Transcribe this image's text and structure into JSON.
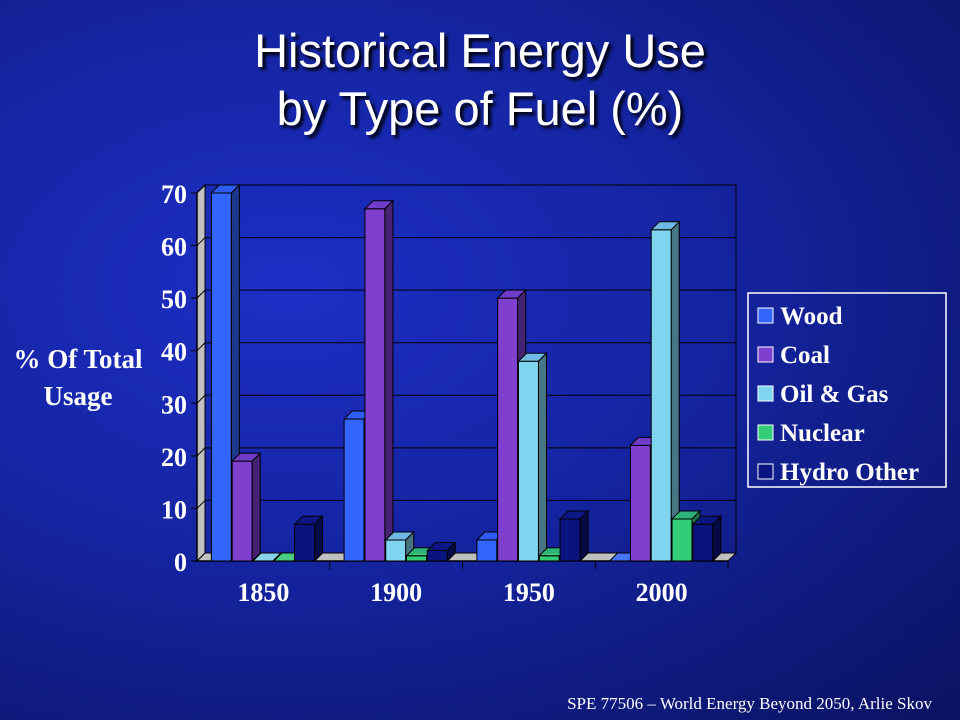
{
  "slide": {
    "title_line1": "Historical Energy Use",
    "title_line2": "by Type of Fuel (%)",
    "footer": "SPE 77506 – World Energy Beyond 2050, Arlie Skov"
  },
  "chart_data": {
    "type": "bar",
    "title": "",
    "ylabel": "% Of Total Usage",
    "ylabel_lines": [
      "% Of Total",
      "Usage"
    ],
    "xlabel": "",
    "categories": [
      "1850",
      "1900",
      "1950",
      "2000"
    ],
    "ylim": [
      0,
      70
    ],
    "yticks": [
      0,
      10,
      20,
      30,
      40,
      50,
      60,
      70
    ],
    "grid": true,
    "legend_position": "right",
    "series": [
      {
        "name": "Wood",
        "color": "#3366ff",
        "values": [
          70,
          27,
          4,
          0
        ]
      },
      {
        "name": "Coal",
        "color": "#7f3fcf",
        "values": [
          19,
          67,
          50,
          22
        ]
      },
      {
        "name": "Oil & Gas",
        "color": "#7fd4f0",
        "values": [
          0,
          4,
          38,
          63
        ]
      },
      {
        "name": "Nuclear",
        "color": "#33cc77",
        "values": [
          0,
          1,
          1,
          8
        ]
      },
      {
        "name": "Hydro Other",
        "color": "#0a1480",
        "values": [
          7,
          2,
          8,
          7
        ]
      }
    ]
  }
}
